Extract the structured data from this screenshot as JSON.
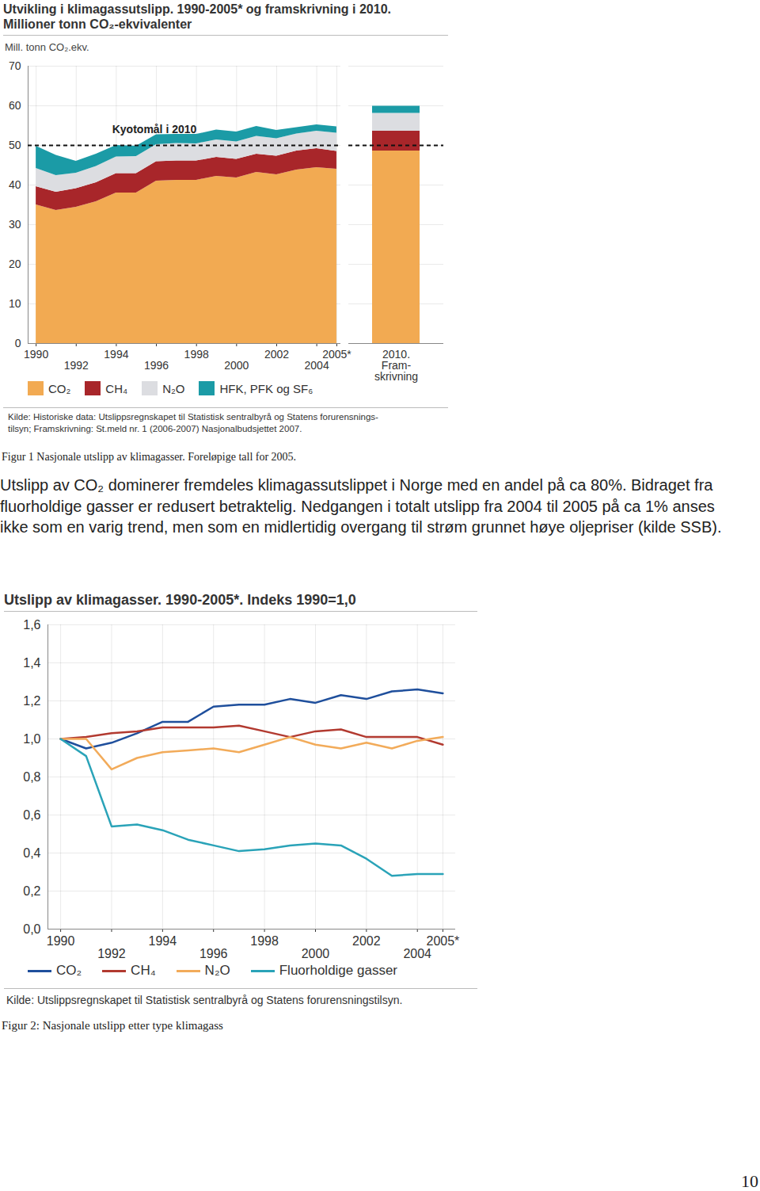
{
  "chart_data": [
    {
      "type": "area",
      "stacked": true,
      "grid": true,
      "legend": "bottom",
      "title": "Utvikling i klimagassutslipp. 1990-2005* og framskrivning i 2010.",
      "subtitle": "Millioner tonn CO₂-ekvivalenter",
      "y_label": "Mill. tonn CO₂.ekv.",
      "source": "Kilde: Historiske data: Utslippsregnskapet til Statistisk sentralbyrå og Statens forurensnings-\ntilsyn; Framskrivning: St.meld nr. 1 (2006-2007) Nasjonalbudsjettet 2007.",
      "x": [
        1990,
        1991,
        1992,
        1993,
        1994,
        1995,
        1996,
        1997,
        1998,
        1999,
        2000,
        2001,
        2002,
        2003,
        2004,
        2005
      ],
      "xlim": [
        1989.6,
        2005.2
      ],
      "xticks": [
        1990,
        1992,
        1994,
        1996,
        1998,
        2000,
        2002,
        2004,
        {
          "value": 2005,
          "label": "2005*"
        }
      ],
      "ylim": [
        0,
        70
      ],
      "yticks": [
        0,
        10,
        20,
        30,
        40,
        50,
        60,
        70
      ],
      "series": [
        {
          "name": "CO₂",
          "color": "#f2aa52",
          "values": [
            35.0,
            33.6,
            34.4,
            35.8,
            38.0,
            38.0,
            41.0,
            41.2,
            41.2,
            42.2,
            41.8,
            43.2,
            42.6,
            43.8,
            44.4,
            44.0
          ]
        },
        {
          "name": "CH₄",
          "color": "#a8262a",
          "values": [
            4.6,
            4.6,
            4.7,
            4.8,
            4.9,
            4.9,
            4.9,
            4.9,
            4.9,
            4.8,
            4.7,
            4.6,
            4.7,
            4.8,
            4.8,
            4.5
          ]
        },
        {
          "name": "N₂O",
          "color": "#dcdde1",
          "values": [
            4.6,
            4.2,
            3.9,
            4.1,
            4.2,
            4.3,
            4.3,
            4.4,
            4.3,
            4.4,
            4.4,
            4.5,
            4.4,
            4.3,
            4.4,
            4.6
          ]
        },
        {
          "name": "HFK, PFK og SF₆",
          "color": "#1b9ba6",
          "values": [
            5.6,
            5.1,
            3.0,
            3.1,
            2.9,
            2.6,
            2.5,
            2.3,
            2.4,
            2.5,
            2.5,
            2.5,
            2.1,
            1.6,
            1.6,
            1.6
          ]
        }
      ],
      "projection": {
        "label": "2010.\nFram-\nskrivning",
        "values": [
          48.6,
          5.0,
          4.5,
          1.8
        ]
      },
      "kyoto": {
        "label": "Kyotomål i 2010",
        "value": 50
      }
    },
    {
      "type": "line",
      "grid": true,
      "legend": "bottom",
      "title": "Utslipp av klimagasser. 1990-2005*. Indeks 1990=1,0",
      "source": "Kilde: Utslippsregnskapet til Statistisk sentralbyrå og Statens forurensningstilsyn.",
      "x": [
        1990,
        1991,
        1992,
        1993,
        1994,
        1995,
        1996,
        1997,
        1998,
        1999,
        2000,
        2001,
        2002,
        2003,
        2004,
        2005
      ],
      "xlim": [
        1989.5,
        2005.5
      ],
      "xticks": [
        1990,
        1992,
        1994,
        1996,
        1998,
        2000,
        2002,
        2004,
        {
          "value": 2005,
          "label": "2005*"
        }
      ],
      "ylim": [
        0,
        1.6
      ],
      "yticks": [
        {
          "value": 0,
          "label": "0,0"
        },
        {
          "value": 0.2,
          "label": "0,2"
        },
        {
          "value": 0.4,
          "label": "0,4"
        },
        {
          "value": 0.6,
          "label": "0,6"
        },
        {
          "value": 0.8,
          "label": "0,8"
        },
        {
          "value": 1.0,
          "label": "1,0"
        },
        {
          "value": 1.2,
          "label": "1,2"
        },
        {
          "value": 1.4,
          "label": "1,4"
        },
        {
          "value": 1.6,
          "label": "1,6"
        }
      ],
      "series": [
        {
          "name": "CO₂",
          "color": "#1f4f9c",
          "values": [
            1.0,
            0.95,
            0.98,
            1.03,
            1.09,
            1.09,
            1.17,
            1.18,
            1.18,
            1.21,
            1.19,
            1.23,
            1.21,
            1.25,
            1.26,
            1.24
          ]
        },
        {
          "name": "CH₄",
          "color": "#b23a30",
          "values": [
            1.0,
            1.01,
            1.03,
            1.04,
            1.06,
            1.06,
            1.06,
            1.07,
            1.04,
            1.01,
            1.04,
            1.05,
            1.01,
            1.01,
            1.01,
            0.97
          ]
        },
        {
          "name": "N₂O",
          "color": "#f2ab5a",
          "values": [
            1.0,
            1.0,
            0.84,
            0.9,
            0.93,
            0.94,
            0.95,
            0.93,
            0.97,
            1.01,
            0.97,
            0.95,
            0.98,
            0.95,
            0.99,
            1.01
          ]
        },
        {
          "name": "Fluorholdige gasser",
          "color": "#2aa3b8",
          "values": [
            1.0,
            0.91,
            0.54,
            0.55,
            0.52,
            0.47,
            0.44,
            0.41,
            0.42,
            0.44,
            0.45,
            0.44,
            0.37,
            0.28,
            0.29,
            0.29
          ]
        }
      ]
    }
  ],
  "document": {
    "caption_1": "Figur 1 Nasjonale utslipp av klimagasser. Foreløpige tall for 2005.",
    "paragraph": "Utslipp av CO₂ dominerer fremdeles klimagassutslippet i Norge med en andel på ca 80%. Bidraget fra fluorholdige gasser er redusert betraktelig. Nedgangen i totalt utslipp fra 2004 til 2005 på ca 1% anses ikke som en varig trend, men som en midlertidig overgang til strøm grunnet høye oljepriser (kilde SSB).",
    "caption_2": "Figur 2: Nasjonale utslipp etter type klimagass",
    "page_number": "10"
  }
}
